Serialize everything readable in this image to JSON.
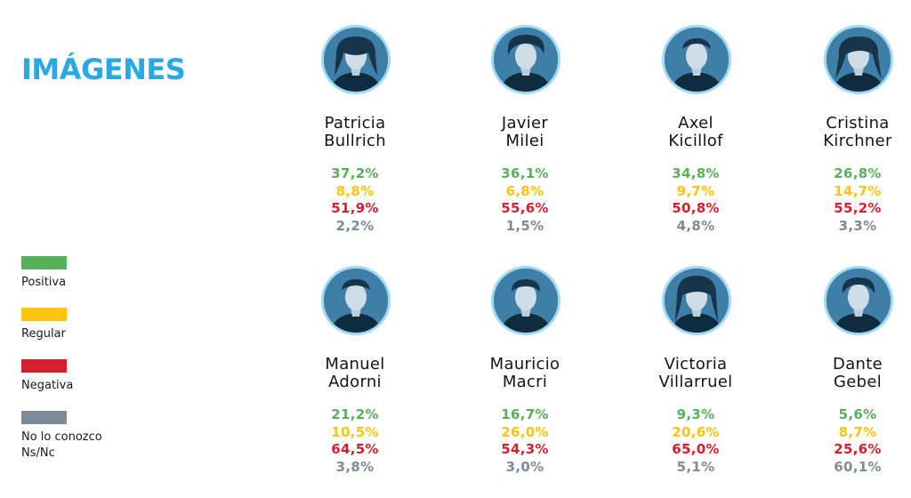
{
  "title": "IMÁGENES",
  "colors": {
    "title": "#2aa8e6",
    "ring": "#9fd9f3",
    "portrait_bg": "#3f7ea6"
  },
  "legend": [
    {
      "label": "Positiva",
      "color": "#57b15b"
    },
    {
      "label": "Regular",
      "color": "#fdc30d"
    },
    {
      "label": "Negativa",
      "color": "#d4202e"
    },
    {
      "label": "No lo conozco\nNs/Nc",
      "color": "#7d8c96"
    }
  ],
  "chart_data": {
    "type": "table",
    "title": "IMÁGENES",
    "columns": [
      "Positiva",
      "Regular",
      "Negativa",
      "No lo conozco Ns/Nc"
    ],
    "rows": [
      {
        "name": "Patricia\nBullrich",
        "values": [
          "37,2%",
          "8,8%",
          "51,9%",
          "2,2%"
        ]
      },
      {
        "name": "Javier\nMilei",
        "values": [
          "36,1%",
          "6,8%",
          "55,6%",
          "1,5%"
        ]
      },
      {
        "name": "Axel\nKicillof",
        "values": [
          "34,8%",
          "9,7%",
          "50,8%",
          "4,8%"
        ]
      },
      {
        "name": "Cristina\nKirchner",
        "values": [
          "26,8%",
          "14,7%",
          "55,2%",
          "3,3%"
        ]
      },
      {
        "name": "Manuel\nAdorni",
        "values": [
          "21,2%",
          "10,5%",
          "64,5%",
          "3,8%"
        ]
      },
      {
        "name": "Mauricio\nMacri",
        "values": [
          "16,7%",
          "26,0%",
          "54,3%",
          "3,0%"
        ]
      },
      {
        "name": "Victoria\nVillarruel",
        "values": [
          "9,3%",
          "20,6%",
          "65,0%",
          "5,1%"
        ]
      },
      {
        "name": "Dante\nGebel",
        "values": [
          "5,6%",
          "8,7%",
          "25,6%",
          "60,1%"
        ]
      }
    ]
  }
}
